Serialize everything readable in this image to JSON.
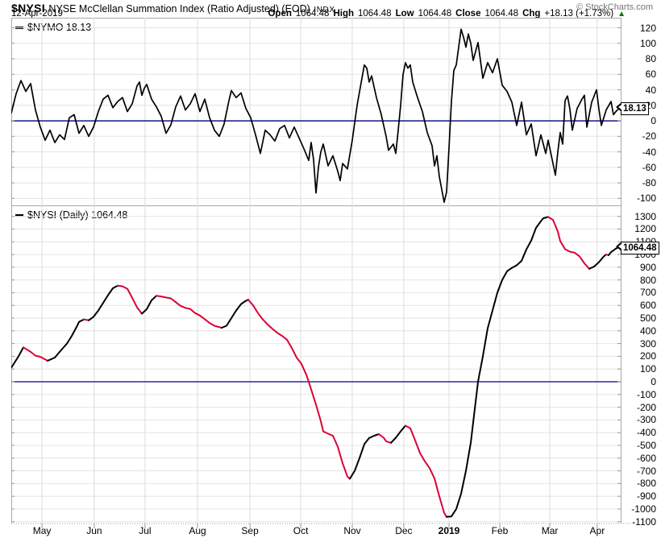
{
  "header": {
    "symbol": "$NYSI",
    "title": "NYSE McClellan Summation Index (Ratio Adjusted) (EOD)",
    "exchange": "INDX",
    "copyright": "© StockCharts.com",
    "date": "12-Apr-2019",
    "quote": {
      "open_label": "Open",
      "open": "1064.48",
      "high_label": "High",
      "high": "1064.48",
      "low_label": "Low",
      "low": "1064.48",
      "close_label": "Close",
      "close": "1064.48",
      "chg_label": "Chg",
      "chg": "+18.13 (+1.73%)",
      "direction_icon": "▲"
    }
  },
  "colors": {
    "line_up": "#000000",
    "line_down": "#dd0033",
    "zero_line": "#000080",
    "grid": "#e4e4e4",
    "month_grid": "#dcdcdc",
    "tick": "#999999",
    "change_up": "#007700",
    "copyright_gray": "#767676"
  },
  "x_axis": {
    "gridline_days": [
      12.7,
      34.3,
      55.3,
      77,
      98.7,
      119.7,
      141,
      162.3,
      181,
      202,
      222.7,
      242.3
    ],
    "labels": [
      {
        "text": "May",
        "day": 12.7
      },
      {
        "text": "Jun",
        "day": 34.3
      },
      {
        "text": "Jul",
        "day": 55.3
      },
      {
        "text": "Aug",
        "day": 77
      },
      {
        "text": "Sep",
        "day": 98.7
      },
      {
        "text": "Oct",
        "day": 119.7
      },
      {
        "text": "Nov",
        "day": 141
      },
      {
        "text": "Dec",
        "day": 162.3
      },
      {
        "text": "2019",
        "day": 181,
        "bold": true
      },
      {
        "text": "Feb",
        "day": 202
      },
      {
        "text": "Mar",
        "day": 222.7
      },
      {
        "text": "Apr",
        "day": 242.3
      }
    ],
    "total_days": 252
  },
  "chart_data": [
    {
      "type": "line",
      "name": "nymo",
      "legend": "$NYMO 18.13",
      "last_label": "18.13",
      "last_value": 18.13,
      "ylim": [
        -109,
        133
      ],
      "yticks": [
        120,
        100,
        80,
        60,
        40,
        20,
        0,
        -20,
        -40,
        -60,
        -80,
        -100
      ],
      "zero_line": true,
      "color_by_direction": false,
      "line_width": 1.7,
      "points": [
        [
          0,
          10
        ],
        [
          2,
          35
        ],
        [
          4,
          52
        ],
        [
          6,
          38
        ],
        [
          8,
          48
        ],
        [
          10,
          14
        ],
        [
          12,
          -8
        ],
        [
          14,
          -25
        ],
        [
          16,
          -12
        ],
        [
          18,
          -28
        ],
        [
          20,
          -18
        ],
        [
          22,
          -24
        ],
        [
          24,
          4
        ],
        [
          26,
          8
        ],
        [
          28,
          -16
        ],
        [
          30,
          -6
        ],
        [
          32,
          -20
        ],
        [
          34,
          -8
        ],
        [
          36,
          12
        ],
        [
          38,
          28
        ],
        [
          40,
          33
        ],
        [
          42,
          17
        ],
        [
          44,
          25
        ],
        [
          46,
          30
        ],
        [
          48,
          12
        ],
        [
          50,
          22
        ],
        [
          52,
          45
        ],
        [
          53,
          50
        ],
        [
          54,
          33
        ],
        [
          55,
          42
        ],
        [
          56,
          47
        ],
        [
          58,
          28
        ],
        [
          60,
          18
        ],
        [
          62,
          6
        ],
        [
          64,
          -16
        ],
        [
          66,
          -5
        ],
        [
          68,
          18
        ],
        [
          70,
          32
        ],
        [
          72,
          14
        ],
        [
          74,
          22
        ],
        [
          76,
          35
        ],
        [
          78,
          12
        ],
        [
          80,
          28
        ],
        [
          82,
          4
        ],
        [
          84,
          -12
        ],
        [
          86,
          -20
        ],
        [
          88,
          -4
        ],
        [
          90,
          26
        ],
        [
          91,
          39
        ],
        [
          93,
          30
        ],
        [
          95,
          36
        ],
        [
          97,
          16
        ],
        [
          99,
          4
        ],
        [
          101,
          -18
        ],
        [
          103,
          -42
        ],
        [
          105,
          -12
        ],
        [
          107,
          -18
        ],
        [
          109,
          -26
        ],
        [
          111,
          -10
        ],
        [
          113,
          -6
        ],
        [
          115,
          -22
        ],
        [
          117,
          -8
        ],
        [
          119,
          -22
        ],
        [
          121,
          -36
        ],
        [
          123,
          -51
        ],
        [
          124,
          -28
        ],
        [
          125,
          -50
        ],
        [
          126,
          -93
        ],
        [
          127,
          -60
        ],
        [
          128,
          -40
        ],
        [
          129,
          -30
        ],
        [
          131,
          -58
        ],
        [
          133,
          -45
        ],
        [
          135,
          -65
        ],
        [
          136,
          -77
        ],
        [
          137,
          -55
        ],
        [
          139,
          -62
        ],
        [
          141,
          -25
        ],
        [
          143,
          20
        ],
        [
          145,
          55
        ],
        [
          146,
          72
        ],
        [
          147,
          68
        ],
        [
          148,
          50
        ],
        [
          149,
          58
        ],
        [
          151,
          30
        ],
        [
          153,
          8
        ],
        [
          155,
          -20
        ],
        [
          156,
          -38
        ],
        [
          158,
          -30
        ],
        [
          159,
          -42
        ],
        [
          160,
          -12
        ],
        [
          161,
          20
        ],
        [
          162,
          60
        ],
        [
          163,
          75
        ],
        [
          164,
          68
        ],
        [
          165,
          72
        ],
        [
          166,
          50
        ],
        [
          168,
          30
        ],
        [
          170,
          12
        ],
        [
          172,
          -15
        ],
        [
          174,
          -32
        ],
        [
          175,
          -58
        ],
        [
          176,
          -45
        ],
        [
          177,
          -72
        ],
        [
          179,
          -105
        ],
        [
          180,
          -92
        ],
        [
          181,
          -35
        ],
        [
          182,
          25
        ],
        [
          183,
          65
        ],
        [
          184,
          72
        ],
        [
          185,
          95
        ],
        [
          186,
          118
        ],
        [
          187,
          108
        ],
        [
          188,
          95
        ],
        [
          189,
          112
        ],
        [
          190,
          100
        ],
        [
          191,
          78
        ],
        [
          193,
          101
        ],
        [
          195,
          55
        ],
        [
          197,
          75
        ],
        [
          199,
          62
        ],
        [
          201,
          80
        ],
        [
          203,
          46
        ],
        [
          205,
          38
        ],
        [
          207,
          24
        ],
        [
          209,
          -6
        ],
        [
          211,
          24
        ],
        [
          213,
          -18
        ],
        [
          215,
          -4
        ],
        [
          217,
          -45
        ],
        [
          219,
          -18
        ],
        [
          221,
          -42
        ],
        [
          222,
          -25
        ],
        [
          225,
          -70
        ],
        [
          226,
          -40
        ],
        [
          227,
          -15
        ],
        [
          228,
          -30
        ],
        [
          229,
          26
        ],
        [
          230,
          32
        ],
        [
          231,
          15
        ],
        [
          232,
          -12
        ],
        [
          234,
          16
        ],
        [
          236,
          28
        ],
        [
          237,
          33
        ],
        [
          238,
          -8
        ],
        [
          240,
          24
        ],
        [
          242,
          40
        ],
        [
          243,
          15
        ],
        [
          244,
          -6
        ],
        [
          246,
          14
        ],
        [
          248,
          25
        ],
        [
          249,
          8
        ],
        [
          250,
          12
        ],
        [
          252,
          18.13
        ]
      ]
    },
    {
      "type": "line",
      "name": "nysi",
      "legend": "$NYSI (Daily) 1064.48",
      "last_label": "1064.48",
      "last_value": 1064.48,
      "ylim": [
        -1114,
        1386
      ],
      "yticks": [
        1300,
        1200,
        1100,
        1000,
        900,
        800,
        700,
        600,
        500,
        400,
        300,
        200,
        100,
        0,
        -100,
        -200,
        -300,
        -400,
        -500,
        -600,
        -700,
        -800,
        -900,
        -1000,
        -1100
      ],
      "zero_line": true,
      "color_by_direction": true,
      "line_width": 2,
      "points": [
        [
          0,
          110
        ],
        [
          3,
          200
        ],
        [
          5,
          270
        ],
        [
          8,
          235
        ],
        [
          10,
          205
        ],
        [
          12,
          196
        ],
        [
          15,
          165
        ],
        [
          18,
          190
        ],
        [
          20,
          235
        ],
        [
          23,
          300
        ],
        [
          25,
          360
        ],
        [
          27,
          430
        ],
        [
          28,
          470
        ],
        [
          30,
          490
        ],
        [
          32,
          483
        ],
        [
          34,
          510
        ],
        [
          36,
          560
        ],
        [
          38,
          620
        ],
        [
          40,
          680
        ],
        [
          42,
          735
        ],
        [
          44,
          755
        ],
        [
          46,
          750
        ],
        [
          48,
          730
        ],
        [
          50,
          660
        ],
        [
          52,
          585
        ],
        [
          54,
          535
        ],
        [
          56,
          570
        ],
        [
          58,
          640
        ],
        [
          60,
          675
        ],
        [
          62,
          670
        ],
        [
          64,
          662
        ],
        [
          66,
          655
        ],
        [
          68,
          625
        ],
        [
          70,
          596
        ],
        [
          72,
          580
        ],
        [
          74,
          572
        ],
        [
          76,
          540
        ],
        [
          78,
          520
        ],
        [
          80,
          492
        ],
        [
          82,
          462
        ],
        [
          84,
          440
        ],
        [
          87,
          424
        ],
        [
          89,
          440
        ],
        [
          91,
          500
        ],
        [
          93,
          560
        ],
        [
          95,
          610
        ],
        [
          97,
          636
        ],
        [
          98,
          645
        ],
        [
          100,
          600
        ],
        [
          102,
          540
        ],
        [
          104,
          490
        ],
        [
          106,
          450
        ],
        [
          108,
          415
        ],
        [
          110,
          385
        ],
        [
          112,
          360
        ],
        [
          114,
          330
        ],
        [
          116,
          265
        ],
        [
          118,
          190
        ],
        [
          120,
          140
        ],
        [
          122,
          55
        ],
        [
          123,
          0
        ],
        [
          124,
          -60
        ],
        [
          126,
          -180
        ],
        [
          128,
          -310
        ],
        [
          129,
          -390
        ],
        [
          131,
          -408
        ],
        [
          133,
          -425
        ],
        [
          135,
          -510
        ],
        [
          137,
          -640
        ],
        [
          139,
          -745
        ],
        [
          140,
          -762
        ],
        [
          142,
          -700
        ],
        [
          144,
          -600
        ],
        [
          146,
          -490
        ],
        [
          148,
          -442
        ],
        [
          150,
          -425
        ],
        [
          151,
          -418
        ],
        [
          152,
          -412
        ],
        [
          154,
          -440
        ],
        [
          155,
          -468
        ],
        [
          157,
          -480
        ],
        [
          159,
          -440
        ],
        [
          161,
          -390
        ],
        [
          163,
          -345
        ],
        [
          165,
          -365
        ],
        [
          167,
          -460
        ],
        [
          169,
          -560
        ],
        [
          171,
          -625
        ],
        [
          173,
          -680
        ],
        [
          175,
          -760
        ],
        [
          177,
          -900
        ],
        [
          179,
          -1030
        ],
        [
          180,
          -1062
        ],
        [
          182,
          -1058
        ],
        [
          184,
          -1000
        ],
        [
          186,
          -880
        ],
        [
          188,
          -700
        ],
        [
          190,
          -480
        ],
        [
          192,
          -160
        ],
        [
          193,
          0
        ],
        [
          195,
          200
        ],
        [
          197,
          420
        ],
        [
          199,
          560
        ],
        [
          201,
          700
        ],
        [
          203,
          800
        ],
        [
          205,
          868
        ],
        [
          207,
          895
        ],
        [
          209,
          915
        ],
        [
          211,
          950
        ],
        [
          213,
          1040
        ],
        [
          215,
          1110
        ],
        [
          217,
          1210
        ],
        [
          219,
          1262
        ],
        [
          220,
          1285
        ],
        [
          222,
          1295
        ],
        [
          224,
          1272
        ],
        [
          226,
          1180
        ],
        [
          227,
          1105
        ],
        [
          229,
          1042
        ],
        [
          231,
          1022
        ],
        [
          233,
          1014
        ],
        [
          235,
          985
        ],
        [
          237,
          930
        ],
        [
          239,
          888
        ],
        [
          241,
          905
        ],
        [
          243,
          940
        ],
        [
          245,
          985
        ],
        [
          246,
          1000
        ],
        [
          247,
          995
        ],
        [
          248,
          1018
        ],
        [
          250,
          1046
        ],
        [
          252,
          1064.48
        ]
      ]
    }
  ]
}
